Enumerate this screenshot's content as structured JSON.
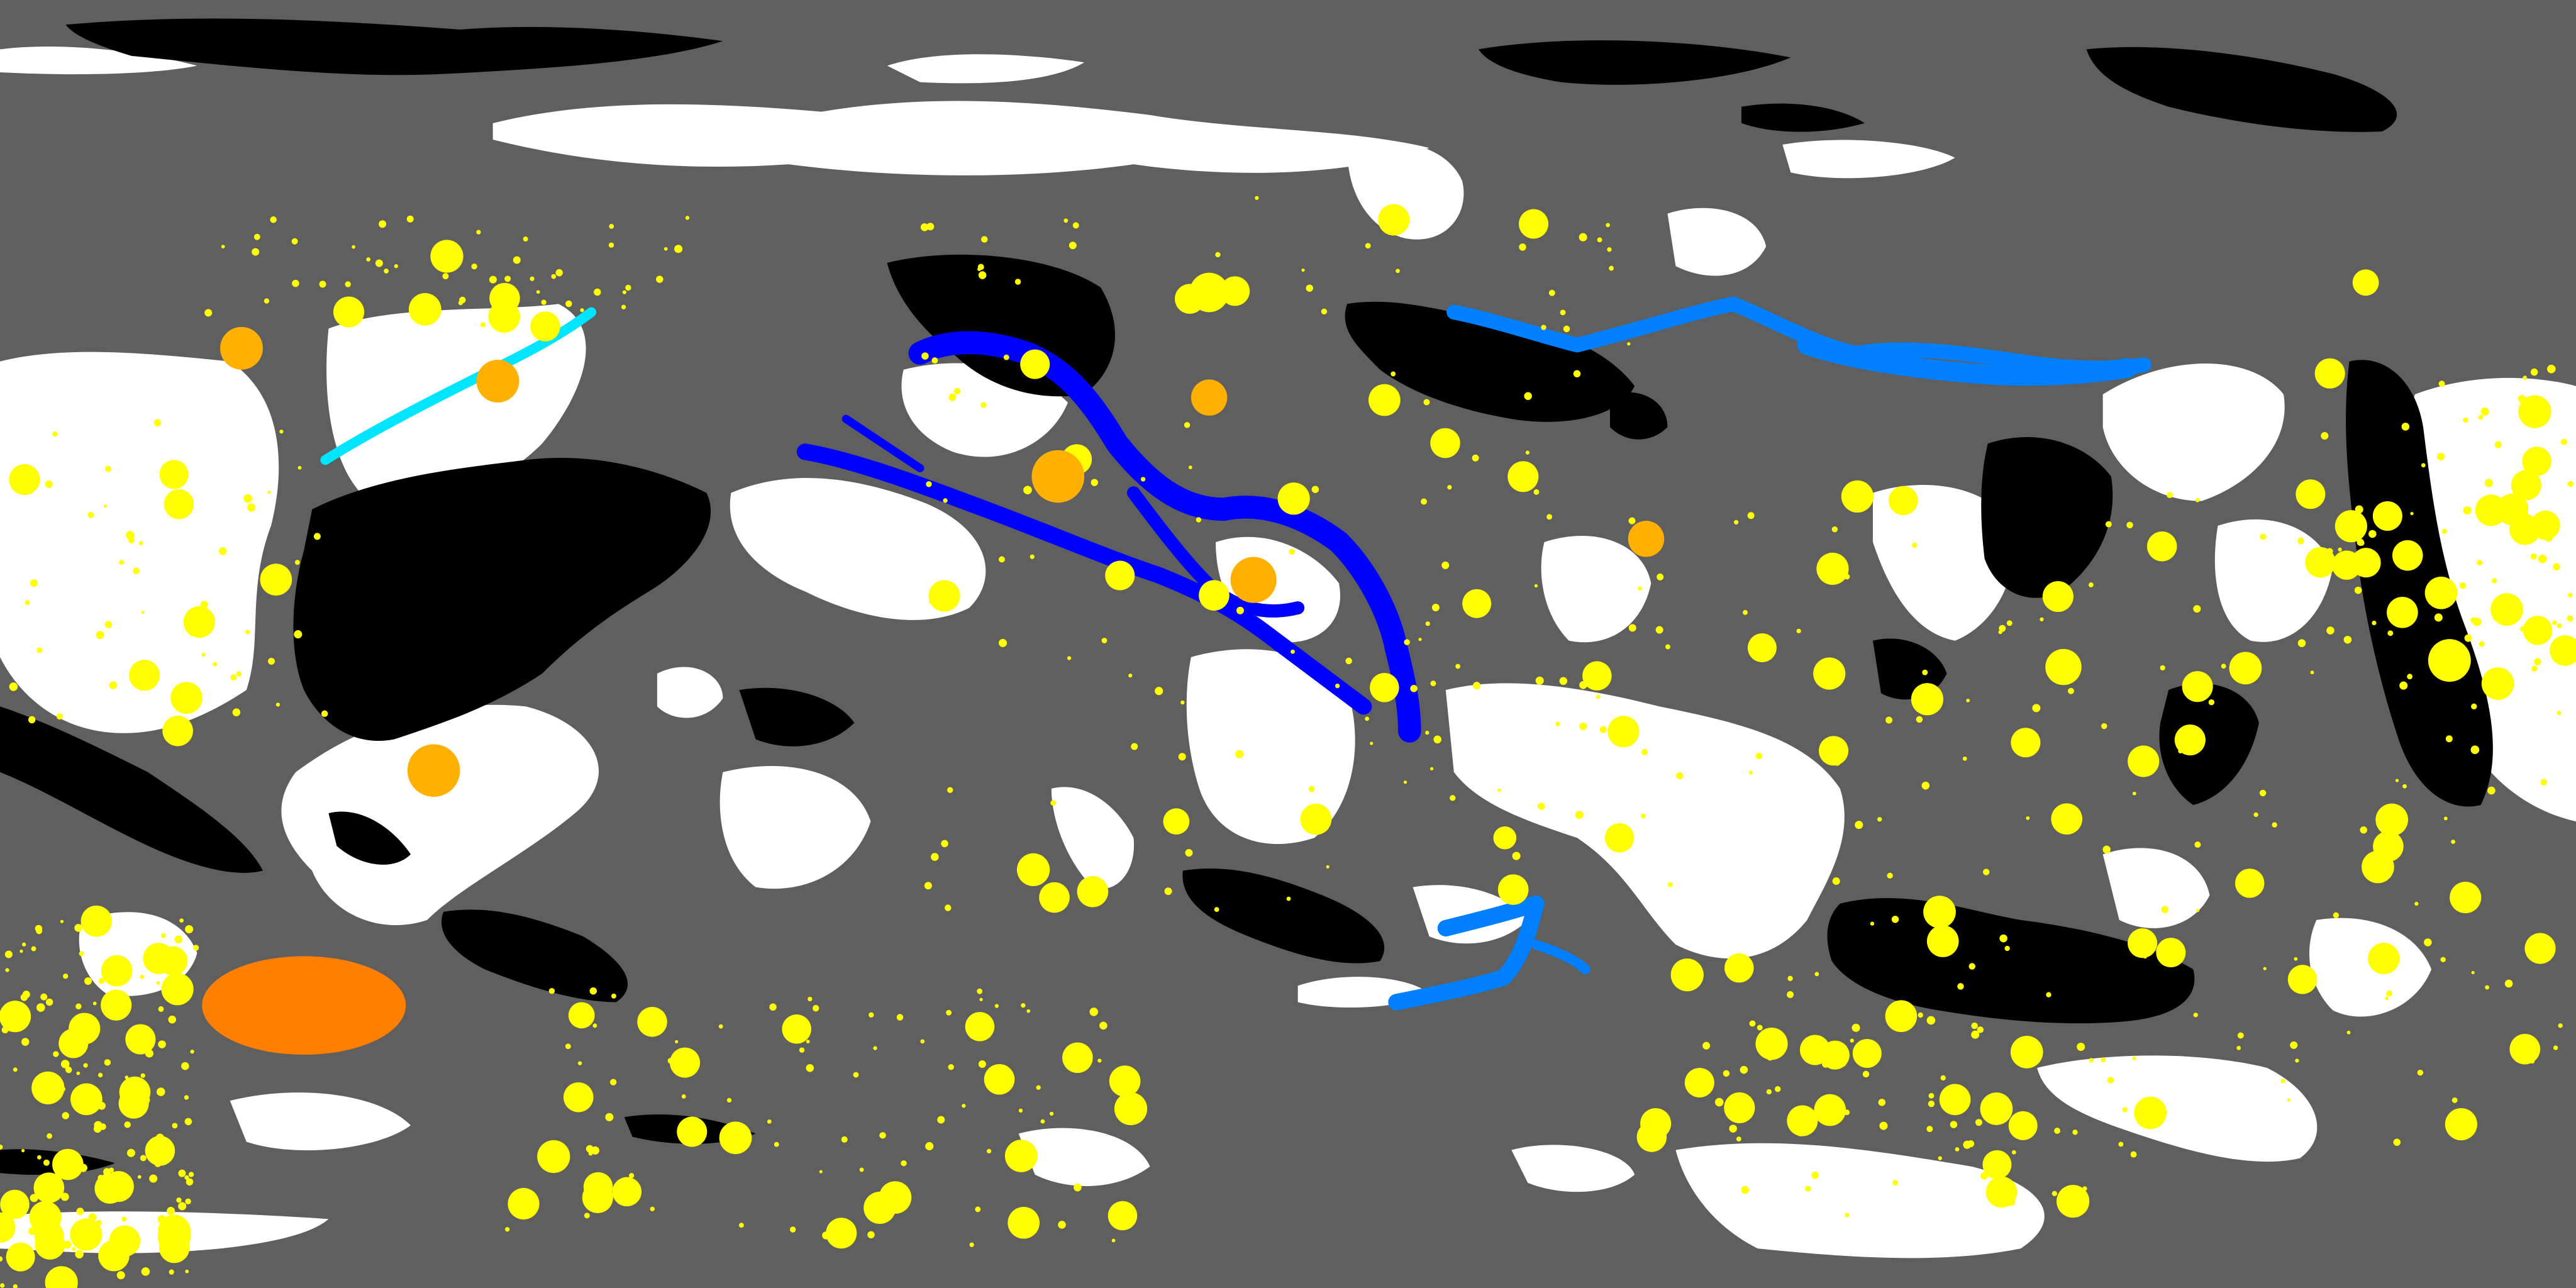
{
  "map": {
    "projection": "equirectangular",
    "labels_visible": false,
    "colors": {
      "background": "#5f5f5f",
      "light_terrain": "#ffffff",
      "dark_terrain": "#000000",
      "small_craters": "#ffff00",
      "medium_craters": "#ffb000",
      "large_basin": "#ff7f00",
      "channel_dark": "#0000ff",
      "channel_light": "#0080ff",
      "ridge": "#00e5ff"
    },
    "layers": [
      {
        "name": "background",
        "color_key": "background",
        "visible": true
      },
      {
        "name": "light-terrain",
        "color_key": "light_terrain",
        "visible": true
      },
      {
        "name": "dark-terrain",
        "color_key": "dark_terrain",
        "visible": true
      },
      {
        "name": "small-craters",
        "color_key": "small_craters",
        "visible": true
      },
      {
        "name": "medium-craters",
        "color_key": "medium_craters",
        "visible": true
      },
      {
        "name": "large-basin",
        "color_key": "large_basin",
        "visible": true
      },
      {
        "name": "channels",
        "color_key": "channel_dark",
        "visible": true
      },
      {
        "name": "ridge",
        "color_key": "ridge",
        "visible": true
      }
    ]
  }
}
